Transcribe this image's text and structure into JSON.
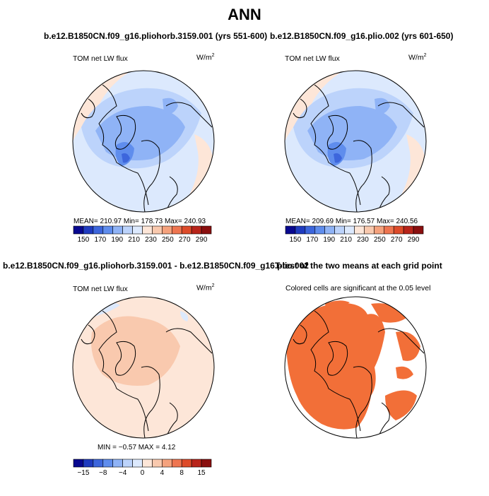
{
  "main_title": "ANN",
  "panels": [
    {
      "title": "b.e12.B1850CN.f09_g16.pliohorb.3159.001 (yrs 551-600)",
      "variable": "TOM net LW flux",
      "units": "W/m",
      "units_sup": "2",
      "stats_text": "MEAN= 210.97   Min= 178.73   Max= 240.93",
      "colorbar_ticks": [
        "150",
        "170",
        "190",
        "210",
        "230",
        "250",
        "270",
        "290"
      ]
    },
    {
      "title": "b.e12.B1850CN.f09_g16.plio.002 (yrs 601-650)",
      "variable": "TOM net LW flux",
      "units": "W/m",
      "units_sup": "2",
      "stats_text": "MEAN= 209.69   Min= 176.57   Max= 240.56",
      "colorbar_ticks": [
        "150",
        "170",
        "190",
        "210",
        "230",
        "250",
        "270",
        "290"
      ]
    },
    {
      "title": "b.e12.B1850CN.f09_g16.pliohorb.3159.001 - b.e12.B1850CN.f09_g16.plio.002",
      "variable": "TOM net LW flux",
      "units": "W/m",
      "units_sup": "2",
      "stats_text": "MIN =  −0.57  MAX =    4.12",
      "colorbar_ticks": [
        "−15",
        "−8",
        "−4",
        "0",
        "4",
        "8",
        "15"
      ]
    },
    {
      "title": "T-test of the two means at each grid point",
      "subtitle": "Colored cells are significant at the 0.05 level"
    }
  ],
  "colors": {
    "abs_scale": [
      "#08088f",
      "#1f3bbf",
      "#3d66dc",
      "#5f8ded",
      "#8fb3f6",
      "#bcd3fb",
      "#dce9fd",
      "#fde6d8",
      "#f9c9ae",
      "#f5a27d",
      "#ee7550",
      "#dd4b2a",
      "#b8241a",
      "#8a0f0f"
    ],
    "diff_scale": [
      "#08088f",
      "#1f3bbf",
      "#3d66dc",
      "#5f8ded",
      "#8fb3f6",
      "#bcd3fb",
      "#dce9fd",
      "#fde6d8",
      "#f9c9ae",
      "#f5a27d",
      "#ee7550",
      "#dd4b2a",
      "#b8241a",
      "#8a0f0f"
    ],
    "significant": "#f26f38"
  }
}
